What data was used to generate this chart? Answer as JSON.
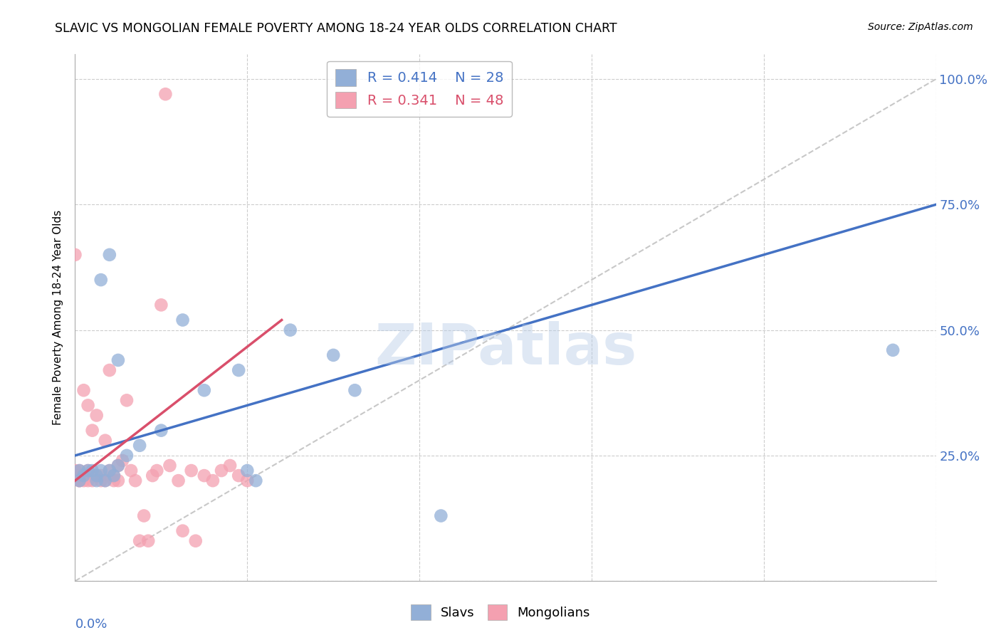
{
  "title": "SLAVIC VS MONGOLIAN FEMALE POVERTY AMONG 18-24 YEAR OLDS CORRELATION CHART",
  "source": "Source: ZipAtlas.com",
  "ylabel": "Female Poverty Among 18-24 Year Olds",
  "xlim": [
    0.0,
    0.2
  ],
  "ylim": [
    0.0,
    1.05
  ],
  "x_ticks": [
    0.0,
    0.04,
    0.08,
    0.12,
    0.16,
    0.2
  ],
  "y_ticks": [
    0.0,
    0.25,
    0.5,
    0.75,
    1.0
  ],
  "y_tick_labels": [
    "",
    "25.0%",
    "50.0%",
    "75.0%",
    "100.0%"
  ],
  "slavs_R": 0.414,
  "slavs_N": 28,
  "mongolians_R": 0.341,
  "mongolians_N": 48,
  "slavs_color": "#92afd7",
  "mongolians_color": "#f4a0b0",
  "slavs_line_color": "#4472c4",
  "mongolians_line_color": "#d94f6b",
  "diagonal_color": "#c8c8c8",
  "watermark": "ZIPatlas",
  "slavs_x": [
    0.001,
    0.001,
    0.002,
    0.003,
    0.004,
    0.005,
    0.005,
    0.006,
    0.006,
    0.007,
    0.008,
    0.008,
    0.009,
    0.01,
    0.01,
    0.012,
    0.015,
    0.02,
    0.025,
    0.03,
    0.038,
    0.04,
    0.042,
    0.05,
    0.06,
    0.065,
    0.085,
    0.19
  ],
  "slavs_y": [
    0.2,
    0.22,
    0.21,
    0.22,
    0.22,
    0.21,
    0.2,
    0.22,
    0.6,
    0.2,
    0.22,
    0.65,
    0.21,
    0.23,
    0.44,
    0.25,
    0.27,
    0.3,
    0.52,
    0.38,
    0.42,
    0.22,
    0.2,
    0.5,
    0.45,
    0.38,
    0.13,
    0.46
  ],
  "mongolians_x": [
    0.001,
    0.001,
    0.001,
    0.002,
    0.002,
    0.003,
    0.003,
    0.003,
    0.004,
    0.004,
    0.005,
    0.005,
    0.006,
    0.006,
    0.007,
    0.007,
    0.008,
    0.008,
    0.009,
    0.009,
    0.01,
    0.01,
    0.011,
    0.012,
    0.013,
    0.014,
    0.015,
    0.016,
    0.017,
    0.018,
    0.019,
    0.02,
    0.021,
    0.022,
    0.024,
    0.025,
    0.027,
    0.028,
    0.03,
    0.032,
    0.034,
    0.036,
    0.038,
    0.04,
    0.0,
    0.0,
    0.0,
    0.001
  ],
  "mongolians_y": [
    0.2,
    0.21,
    0.22,
    0.2,
    0.38,
    0.2,
    0.22,
    0.35,
    0.2,
    0.3,
    0.21,
    0.33,
    0.2,
    0.21,
    0.2,
    0.28,
    0.22,
    0.42,
    0.2,
    0.21,
    0.2,
    0.23,
    0.24,
    0.36,
    0.22,
    0.2,
    0.08,
    0.13,
    0.08,
    0.21,
    0.22,
    0.55,
    0.97,
    0.23,
    0.2,
    0.1,
    0.22,
    0.08,
    0.21,
    0.2,
    0.22,
    0.23,
    0.21,
    0.2,
    0.21,
    0.22,
    0.65,
    0.2
  ],
  "blue_line_x": [
    0.0,
    0.2
  ],
  "blue_line_y": [
    0.25,
    0.75
  ],
  "pink_line_x": [
    0.0,
    0.048
  ],
  "pink_line_y": [
    0.2,
    0.52
  ]
}
